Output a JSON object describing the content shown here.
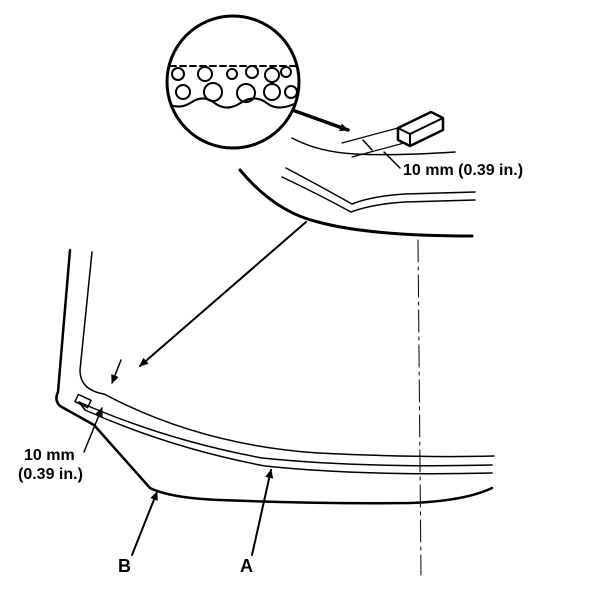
{
  "labels": {
    "dimension_top": "10 mm (0.39 in.)",
    "dimension_left_line1": "10 mm",
    "dimension_left_line2": "(0.39 in.)",
    "callout_a": "A",
    "callout_b": "B"
  },
  "colors": {
    "ink": "#000000",
    "background": "#ffffff"
  }
}
